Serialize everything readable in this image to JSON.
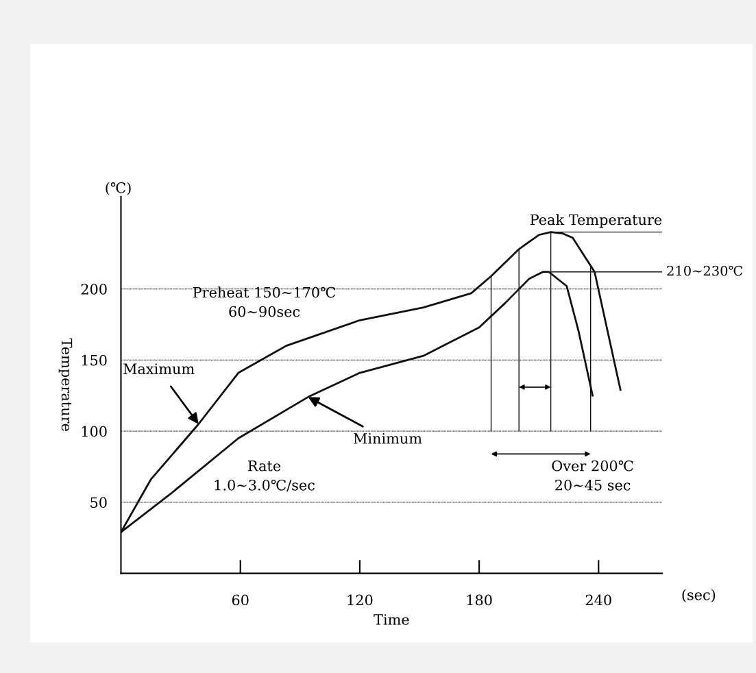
{
  "chart_data": {
    "type": "line",
    "xlabel": "Time",
    "ylabel": "Temperature",
    "xlim": [
      0,
      272
    ],
    "ylim": [
      0,
      265
    ],
    "xticks": [
      60,
      120,
      180,
      240
    ],
    "yticks": [
      50,
      100,
      150,
      200
    ],
    "grid": "y",
    "series": [
      {
        "color": "#111111",
        "x": [
          0,
          15,
          39,
          59,
          83,
          120,
          152,
          176,
          186,
          200,
          210,
          216,
          222,
          227,
          238,
          251
        ],
        "values": [
          29,
          66,
          105,
          141,
          160,
          178,
          187,
          197,
          209,
          228,
          238,
          240,
          239,
          236,
          212,
          129
        ]
      },
      {
        "color": "#111111",
        "x": [
          0,
          25,
          59,
          94,
          120,
          152,
          180,
          193,
          205,
          212,
          215,
          224,
          230,
          237
        ],
        "values": [
          29,
          56,
          95,
          124,
          141,
          153,
          173,
          190,
          207,
          212,
          212,
          202,
          170,
          125
        ]
      }
    ],
    "ref_lines": [
      {
        "axis": "y",
        "value": 240,
        "label": "Peak Temperature",
        "color": "#111111"
      },
      {
        "axis": "y",
        "value": 212,
        "label": "210∼230℃",
        "color": "#111111"
      },
      {
        "axis": "x",
        "value": 186,
        "color": "#111111"
      },
      {
        "axis": "x",
        "value": 200,
        "color": "#111111"
      },
      {
        "axis": "x",
        "value": 216,
        "color": "#111111"
      },
      {
        "axis": "x",
        "value": 236,
        "color": "#111111"
      }
    ],
    "annotations": [
      {
        "text": "Maximum",
        "x": 39,
        "y": 105
      },
      {
        "text": "Minimum",
        "x": 94,
        "y": 124
      },
      "Preheat 150∼170℃\n60∼90sec",
      "Rate\n1.0∼3.0℃/sec",
      "Over 200℃\n20∼45 sec",
      "(℃)",
      "(sec)"
    ]
  }
}
